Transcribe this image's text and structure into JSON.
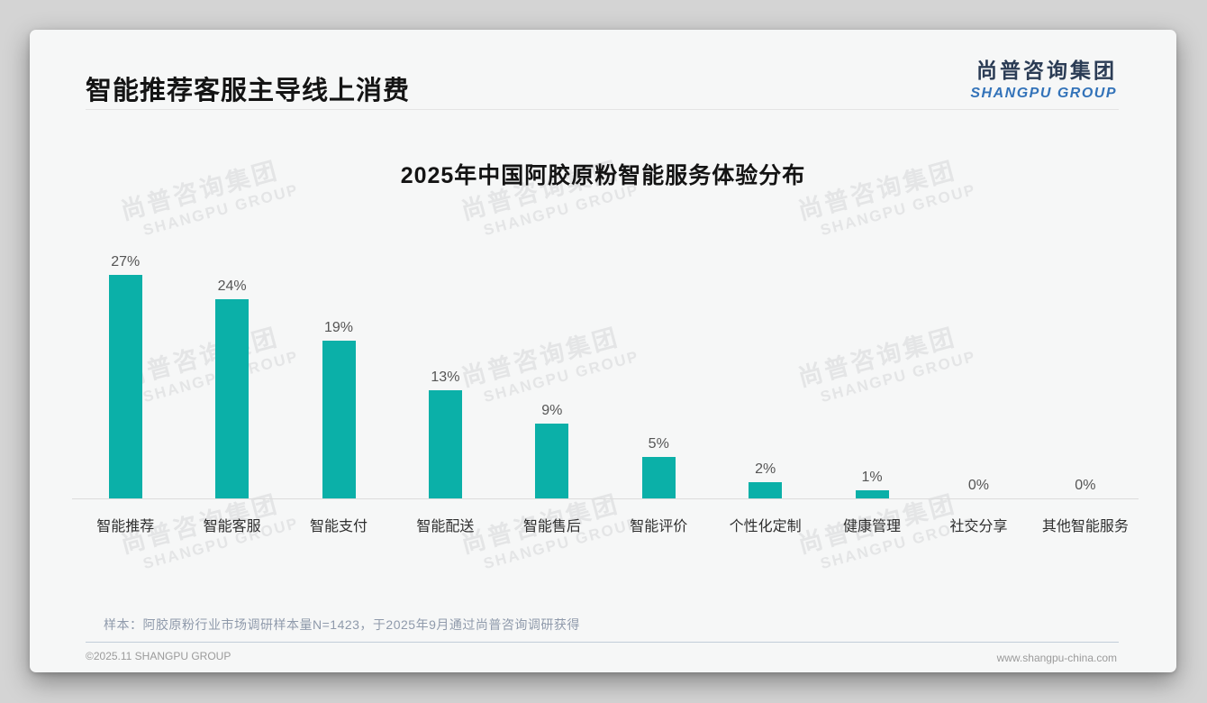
{
  "page": {
    "title": "智能推荐客服主导线上消费",
    "sample_note": "样本：阿胶原粉行业市场调研样本量N=1423，于2025年9月通过尚普咨询调研获得",
    "footer_left": "©2025.11 SHANGPU GROUP",
    "footer_right": "www.shangpu-china.com"
  },
  "logo": {
    "cn": "尚普咨询集团",
    "en": "SHANGPU GROUP"
  },
  "watermark": {
    "cn": "尚普咨询集团",
    "en": "SHANGPU GROUP"
  },
  "colors": {
    "bar": "#0bb0a8",
    "logo_cn": "#2b3c55",
    "logo_en": "#3373b9",
    "note": "#8f9aab",
    "watermark": "#e4e5e6"
  },
  "chart_data": {
    "type": "bar",
    "title": "2025年中国阿胶原粉智能服务体验分布",
    "categories": [
      "智能推荐",
      "智能客服",
      "智能支付",
      "智能配送",
      "智能售后",
      "智能评价",
      "个性化定制",
      "健康管理",
      "社交分享",
      "其他智能服务"
    ],
    "values": [
      27,
      24,
      19,
      13,
      9,
      5,
      2,
      1,
      0,
      0
    ],
    "value_labels": [
      "27%",
      "24%",
      "19%",
      "13%",
      "9%",
      "5%",
      "2%",
      "1%",
      "0%",
      "0%"
    ],
    "unit": "%",
    "xlabel": "",
    "ylabel": "",
    "ylim": [
      0,
      29
    ],
    "grid": false,
    "legend": false,
    "bar_color": "#0bb0a8"
  }
}
